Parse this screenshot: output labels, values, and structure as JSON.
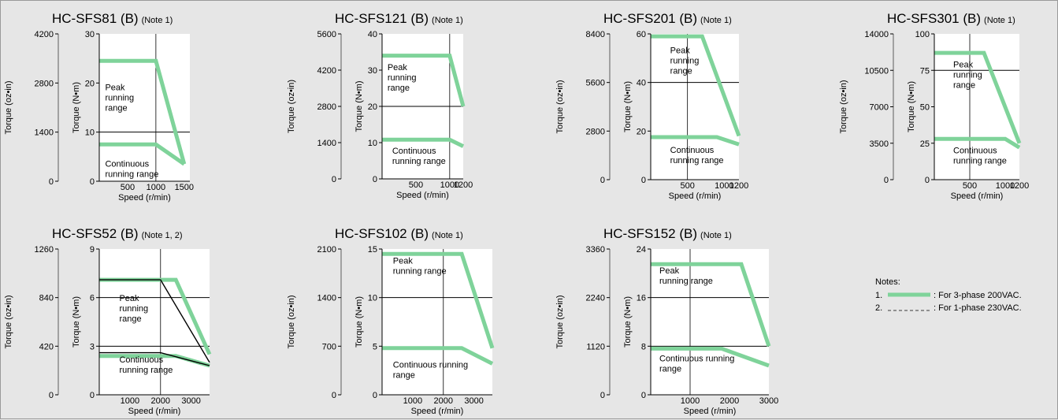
{
  "notes": {
    "title": "Notes:",
    "items": [
      {
        "num": "1.",
        "text": ": For 3-phase 200VAC."
      },
      {
        "num": "2.",
        "text": ": For 1-phase 230VAC."
      }
    ]
  },
  "colors": {
    "curve": "#7fd39a",
    "background": "#e6e6e6",
    "plot": "#ffffff",
    "line": "#000000"
  },
  "chart_data": [
    {
      "type": "line",
      "model": "HC-SFS81 (B)",
      "note": "(Note  1)",
      "xlabel": "Speed (r/min)",
      "ylabel": "Torque (N•m)",
      "ylabel_alt": "Torque (oz•in)",
      "xlim": [
        0,
        1600
      ],
      "ylim": [
        0,
        30
      ],
      "xticks": [
        {
          "v": 500,
          "label": "500"
        },
        {
          "v": 1000,
          "label": "1000"
        },
        {
          "v": 1500,
          "label": "1500"
        }
      ],
      "yticks": [
        {
          "v": 0,
          "label": "0"
        },
        {
          "v": 10,
          "label": "10"
        },
        {
          "v": 20,
          "label": "20"
        },
        {
          "v": 30,
          "label": "30"
        }
      ],
      "yticks_alt": [
        {
          "v": 0,
          "label": "0"
        },
        {
          "v": 10,
          "label": "1400"
        },
        {
          "v": 20,
          "label": "2800"
        },
        {
          "v": 30,
          "label": "4200"
        }
      ],
      "gridlines": {
        "x": [
          1000
        ],
        "y": [
          10
        ]
      },
      "series": [
        {
          "style": "solid",
          "points": [
            [
              0,
              24.5
            ],
            [
              1000,
              24.5
            ],
            [
              1500,
              3.5
            ]
          ]
        },
        {
          "style": "solid",
          "points": [
            [
              0,
              7.5
            ],
            [
              1000,
              7.5
            ],
            [
              1500,
              3.5
            ]
          ]
        }
      ],
      "labels": [
        {
          "lines": [
            "Peak",
            "running",
            "range"
          ],
          "at": [
            20,
            18.5
          ]
        },
        {
          "lines": [
            "Continuous",
            "running range"
          ],
          "at": [
            20,
            3
          ]
        }
      ]
    },
    {
      "type": "line",
      "model": "HC-SFS121 (B)",
      "note": "(Note 1)",
      "xlabel": "Speed (r/min)",
      "ylabel": "Torque (N•m)",
      "ylabel_alt": "Torque (oz•in)",
      "xlim": [
        0,
        1200
      ],
      "ylim": [
        0,
        40
      ],
      "xticks": [
        {
          "v": 500,
          "label": "500"
        },
        {
          "v": 1000,
          "label": "1000"
        },
        {
          "v": 1200,
          "label": "1200"
        }
      ],
      "yticks": [
        {
          "v": 0,
          "label": "0"
        },
        {
          "v": 10,
          "label": "10"
        },
        {
          "v": 20,
          "label": "20"
        },
        {
          "v": 30,
          "label": "30"
        },
        {
          "v": 40,
          "label": "40"
        }
      ],
      "yticks_alt": [
        {
          "v": 0,
          "label": "0"
        },
        {
          "v": 10,
          "label": "1400"
        },
        {
          "v": 20,
          "label": "2800"
        },
        {
          "v": 30,
          "label": "4200"
        },
        {
          "v": 40,
          "label": "5600"
        }
      ],
      "gridlines": {
        "x": [
          1000
        ],
        "y": [
          20
        ]
      },
      "series": [
        {
          "style": "solid",
          "points": [
            [
              0,
              34
            ],
            [
              1000,
              34
            ],
            [
              1200,
              20
            ]
          ]
        },
        {
          "style": "solid",
          "points": [
            [
              0,
              10.8
            ],
            [
              1000,
              10.8
            ],
            [
              1200,
              9
            ]
          ]
        }
      ],
      "labels": [
        {
          "lines": [
            "Peak",
            "running",
            "range"
          ],
          "at": [
            10,
            30
          ]
        },
        {
          "lines": [
            "Continuous",
            "running range"
          ],
          "at": [
            80,
            7
          ]
        }
      ]
    },
    {
      "type": "line",
      "model": "HC-SFS201 (B)",
      "note": "(Note 1)",
      "xlabel": "Speed (r/min)",
      "ylabel": "Torque (N•m)",
      "ylabel_alt": "Torque (oz•in)",
      "xlim": [
        0,
        1200
      ],
      "ylim": [
        0,
        60
      ],
      "xticks": [
        {
          "v": 500,
          "label": "500"
        },
        {
          "v": 1000,
          "label": "1000"
        },
        {
          "v": 1200,
          "label": "1200"
        }
      ],
      "yticks": [
        {
          "v": 0,
          "label": "0"
        },
        {
          "v": 20,
          "label": "20"
        },
        {
          "v": 40,
          "label": "40"
        },
        {
          "v": 60,
          "label": "60"
        }
      ],
      "yticks_alt": [
        {
          "v": 0,
          "label": "0"
        },
        {
          "v": 20,
          "label": "2800"
        },
        {
          "v": 40,
          "label": "5600"
        },
        {
          "v": 60,
          "label": "8400"
        }
      ],
      "gridlines": {
        "x": [
          500
        ],
        "y": [
          40
        ]
      },
      "series": [
        {
          "style": "solid",
          "points": [
            [
              0,
              59
            ],
            [
              700,
              59
            ],
            [
              1200,
              18
            ]
          ]
        },
        {
          "style": "solid",
          "points": [
            [
              0,
              17.5
            ],
            [
              900,
              17.5
            ],
            [
              1200,
              14.5
            ]
          ]
        }
      ],
      "labels": [
        {
          "lines": [
            "Peak",
            "running",
            "range"
          ],
          "at": [
            200,
            52
          ]
        },
        {
          "lines": [
            "Continuous",
            "running range"
          ],
          "at": [
            200,
            11
          ]
        }
      ]
    },
    {
      "type": "line",
      "model": "HC-SFS301 (B)",
      "note": "(Note  1)",
      "xlabel": "Speed (r/min)",
      "ylabel": "Torque (N•m)",
      "ylabel_alt": "Torque (oz•in)",
      "xlim": [
        0,
        1200
      ],
      "ylim": [
        0,
        100
      ],
      "xticks": [
        {
          "v": 500,
          "label": "500"
        },
        {
          "v": 1000,
          "label": "1000"
        },
        {
          "v": 1200,
          "label": "1200"
        }
      ],
      "yticks": [
        {
          "v": 0,
          "label": "0"
        },
        {
          "v": 25,
          "label": "25"
        },
        {
          "v": 50,
          "label": "50"
        },
        {
          "v": 75,
          "label": "75"
        },
        {
          "v": 100,
          "label": "100"
        }
      ],
      "yticks_alt": [
        {
          "v": 0,
          "label": "0"
        },
        {
          "v": 25,
          "label": "3500"
        },
        {
          "v": 50,
          "label": "7000"
        },
        {
          "v": 75,
          "label": "10500"
        },
        {
          "v": 100,
          "label": "14000"
        }
      ],
      "gridlines": {
        "x": [
          500
        ],
        "y": [
          75
        ]
      },
      "series": [
        {
          "style": "solid",
          "points": [
            [
              0,
              87
            ],
            [
              700,
              87
            ],
            [
              1200,
              25
            ]
          ]
        },
        {
          "style": "solid",
          "points": [
            [
              0,
              28
            ],
            [
              1000,
              28
            ],
            [
              1200,
              22
            ]
          ]
        }
      ],
      "labels": [
        {
          "lines": [
            "Peak",
            "running",
            "range"
          ],
          "at": [
            200,
            77
          ]
        },
        {
          "lines": [
            "Continuous",
            "running range"
          ],
          "at": [
            200,
            18
          ]
        }
      ]
    },
    {
      "type": "line",
      "model": "HC-SFS52 (B)",
      "note": "(Note 1, 2)",
      "xlabel": "Speed (r/min)",
      "ylabel": "Torque (N•m)",
      "ylabel_alt": "Torque (oz•in)",
      "xlim": [
        0,
        3600
      ],
      "ylim": [
        0,
        9
      ],
      "xticks": [
        {
          "v": 1000,
          "label": "1000"
        },
        {
          "v": 2000,
          "label": "2000"
        },
        {
          "v": 3000,
          "label": "3000"
        }
      ],
      "yticks": [
        {
          "v": 0,
          "label": "0"
        },
        {
          "v": 3,
          "label": "3"
        },
        {
          "v": 6,
          "label": "6"
        },
        {
          "v": 9,
          "label": "9"
        }
      ],
      "yticks_alt": [
        {
          "v": 0,
          "label": "0"
        },
        {
          "v": 3,
          "label": "420"
        },
        {
          "v": 6,
          "label": "840"
        },
        {
          "v": 9,
          "label": "1260"
        }
      ],
      "gridlines": {
        "x": [
          2000
        ],
        "y": [
          3,
          6
        ]
      },
      "series": [
        {
          "style": "solid",
          "points": [
            [
              0,
              7.1
            ],
            [
              2500,
              7.1
            ],
            [
              3600,
              2.5
            ]
          ]
        },
        {
          "style": "solid",
          "points": [
            [
              0,
              2.4
            ],
            [
              2500,
              2.4
            ],
            [
              3600,
              1.8
            ]
          ]
        },
        {
          "style": "dashed",
          "points": [
            [
              0,
              7.1
            ],
            [
              2000,
              7.1
            ],
            [
              3600,
              2.0
            ]
          ]
        },
        {
          "style": "dashed",
          "points": [
            [
              0,
              2.6
            ],
            [
              2000,
              2.6
            ],
            [
              3600,
              1.8
            ]
          ]
        }
      ],
      "labels": [
        {
          "lines": [
            "Peak",
            "running",
            "range"
          ],
          "at": [
            500,
            5.8
          ]
        },
        {
          "lines": [
            "Continuous",
            "running range"
          ],
          "at": [
            500,
            2.0
          ]
        }
      ]
    },
    {
      "type": "line",
      "model": "HC-SFS102 (B)",
      "note": "(Note 1)",
      "xlabel": "Speed (r/min)",
      "ylabel": "Torque (N•m)",
      "ylabel_alt": "Torque (oz•in)",
      "xlim": [
        0,
        3600
      ],
      "ylim": [
        0,
        15
      ],
      "xticks": [
        {
          "v": 1000,
          "label": "1000"
        },
        {
          "v": 2000,
          "label": "2000"
        },
        {
          "v": 3000,
          "label": "3000"
        }
      ],
      "yticks": [
        {
          "v": 0,
          "label": "0"
        },
        {
          "v": 5,
          "label": "5"
        },
        {
          "v": 10,
          "label": "10"
        },
        {
          "v": 15,
          "label": "15"
        }
      ],
      "yticks_alt": [
        {
          "v": 0,
          "label": "0"
        },
        {
          "v": 5,
          "label": "700"
        },
        {
          "v": 10,
          "label": "1400"
        },
        {
          "v": 15,
          "label": "2100"
        }
      ],
      "gridlines": {
        "x": [
          2000
        ],
        "y": [
          10
        ]
      },
      "series": [
        {
          "style": "solid",
          "points": [
            [
              0,
              14.5
            ],
            [
              2600,
              14.5
            ],
            [
              3600,
              4.8
            ]
          ]
        },
        {
          "style": "solid",
          "points": [
            [
              0,
              4.8
            ],
            [
              2600,
              4.8
            ],
            [
              3600,
              3.2
            ]
          ]
        }
      ],
      "labels": [
        {
          "lines": [
            "Peak",
            "running range"
          ],
          "at": [
            200,
            13.5
          ]
        },
        {
          "lines": [
            "Continuous running",
            "range"
          ],
          "at": [
            200,
            2.8
          ]
        }
      ]
    },
    {
      "type": "line",
      "model": "HC-SFS152 (B)",
      "note": "(Note  1)",
      "xlabel": "Speed (r/min)",
      "ylabel": "Torque (N•m)",
      "ylabel_alt": "Torque (oz•in)",
      "xlim": [
        0,
        3000
      ],
      "ylim": [
        0,
        24
      ],
      "xticks": [
        {
          "v": 1000,
          "label": "1000"
        },
        {
          "v": 2000,
          "label": "2000"
        },
        {
          "v": 3000,
          "label": "3000"
        }
      ],
      "yticks": [
        {
          "v": 0,
          "label": "0"
        },
        {
          "v": 8,
          "label": "8"
        },
        {
          "v": 16,
          "label": "16"
        },
        {
          "v": 24,
          "label": "24"
        }
      ],
      "yticks_alt": [
        {
          "v": 0,
          "label": "0"
        },
        {
          "v": 8,
          "label": "1120"
        },
        {
          "v": 16,
          "label": "2240"
        },
        {
          "v": 24,
          "label": "3360"
        }
      ],
      "gridlines": {
        "x": [
          1000
        ],
        "y": [
          8,
          16
        ]
      },
      "series": [
        {
          "style": "solid",
          "points": [
            [
              0,
              21.5
            ],
            [
              2300,
              21.5
            ],
            [
              3000,
              8
            ]
          ]
        },
        {
          "style": "solid",
          "points": [
            [
              0,
              7.6
            ],
            [
              1800,
              7.6
            ],
            [
              3000,
              4.8
            ]
          ]
        }
      ],
      "labels": [
        {
          "lines": [
            "Peak",
            "running range"
          ],
          "at": [
            100,
            20
          ]
        },
        {
          "lines": [
            "Continuous running",
            "range"
          ],
          "at": [
            100,
            5.5
          ]
        }
      ]
    }
  ]
}
